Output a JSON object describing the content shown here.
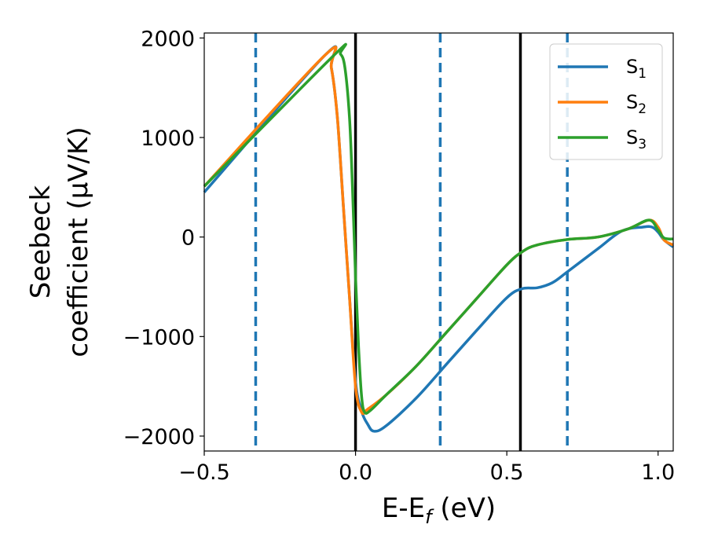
{
  "chart_data": {
    "type": "line",
    "xlabel": {
      "main": "E-E",
      "sub": "f",
      "unit": " (eV)"
    },
    "ylabel": {
      "line1": "Seebeck",
      "line2": "coefficient  (μV/K)"
    },
    "xlim": [
      -0.5,
      1.05
    ],
    "ylim": [
      -2150,
      2050
    ],
    "xticks": [
      -0.5,
      0.0,
      0.5,
      1.0
    ],
    "xtick_labels": [
      "−0.5",
      "0.0",
      "0.5",
      "1.0"
    ],
    "yticks": [
      2000,
      1000,
      0,
      -1000,
      -2000
    ],
    "ytick_labels": [
      "2000",
      "1000",
      "0",
      "−1000",
      "−2000"
    ],
    "grid": false,
    "legend_position": "top-right",
    "series": [
      {
        "name": "S",
        "sub": "1",
        "color": "#1f77b4",
        "points": [
          [
            -0.5,
            450
          ],
          [
            -0.1,
            1830
          ],
          [
            -0.08,
            1700
          ],
          [
            -0.06,
            1200
          ],
          [
            -0.04,
            300
          ],
          [
            -0.02,
            -600
          ],
          [
            0.0,
            -1450
          ],
          [
            0.02,
            -1750
          ],
          [
            0.04,
            -1880
          ],
          [
            0.06,
            -1950
          ],
          [
            0.1,
            -1900
          ],
          [
            0.2,
            -1620
          ],
          [
            0.3,
            -1280
          ],
          [
            0.4,
            -940
          ],
          [
            0.5,
            -610
          ],
          [
            0.55,
            -520
          ],
          [
            0.6,
            -510
          ],
          [
            0.65,
            -460
          ],
          [
            0.7,
            -350
          ],
          [
            0.8,
            -120
          ],
          [
            0.88,
            60
          ],
          [
            0.95,
            100
          ],
          [
            0.98,
            100
          ],
          [
            1.0,
            50
          ],
          [
            1.02,
            -30
          ],
          [
            1.05,
            -100
          ]
        ]
      },
      {
        "name": "S",
        "sub": "2",
        "color": "#ff7f0e",
        "points": [
          [
            -0.5,
            510
          ],
          [
            -0.1,
            1830
          ],
          [
            -0.08,
            1700
          ],
          [
            -0.06,
            1200
          ],
          [
            -0.04,
            300
          ],
          [
            -0.02,
            -600
          ],
          [
            0.0,
            -1500
          ],
          [
            0.02,
            -1760
          ],
          [
            0.04,
            -1730
          ],
          [
            0.1,
            -1590
          ],
          [
            0.2,
            -1300
          ],
          [
            0.3,
            -960
          ],
          [
            0.4,
            -620
          ],
          [
            0.5,
            -280
          ],
          [
            0.55,
            -150
          ],
          [
            0.6,
            -80
          ],
          [
            0.7,
            -25
          ],
          [
            0.8,
            0
          ],
          [
            0.9,
            80
          ],
          [
            0.97,
            170
          ],
          [
            1.0,
            100
          ],
          [
            1.02,
            -30
          ],
          [
            1.05,
            -80
          ]
        ]
      },
      {
        "name": "S",
        "sub": "3",
        "color": "#2ca02c",
        "points": [
          [
            -0.5,
            510
          ],
          [
            -0.07,
            1830
          ],
          [
            -0.05,
            1840
          ],
          [
            -0.035,
            1700
          ],
          [
            -0.02,
            1200
          ],
          [
            -0.01,
            500
          ],
          [
            0.0,
            -400
          ],
          [
            0.01,
            -1100
          ],
          [
            0.02,
            -1600
          ],
          [
            0.03,
            -1760
          ],
          [
            0.05,
            -1740
          ],
          [
            0.1,
            -1590
          ],
          [
            0.2,
            -1300
          ],
          [
            0.3,
            -960
          ],
          [
            0.4,
            -620
          ],
          [
            0.5,
            -280
          ],
          [
            0.55,
            -150
          ],
          [
            0.6,
            -80
          ],
          [
            0.7,
            -25
          ],
          [
            0.8,
            0
          ],
          [
            0.9,
            80
          ],
          [
            0.97,
            170
          ],
          [
            1.0,
            70
          ],
          [
            1.02,
            -10
          ],
          [
            1.05,
            -20
          ]
        ]
      }
    ],
    "vlines": [
      {
        "x": -0.33,
        "style": "dashed",
        "color": "#1f77b4"
      },
      {
        "x": 0.0,
        "style": "solid",
        "color": "#000000"
      },
      {
        "x": 0.28,
        "style": "dashed",
        "color": "#1f77b4"
      },
      {
        "x": 0.545,
        "style": "solid",
        "color": "#000000"
      },
      {
        "x": 0.7,
        "style": "dashed",
        "color": "#1f77b4"
      }
    ]
  }
}
